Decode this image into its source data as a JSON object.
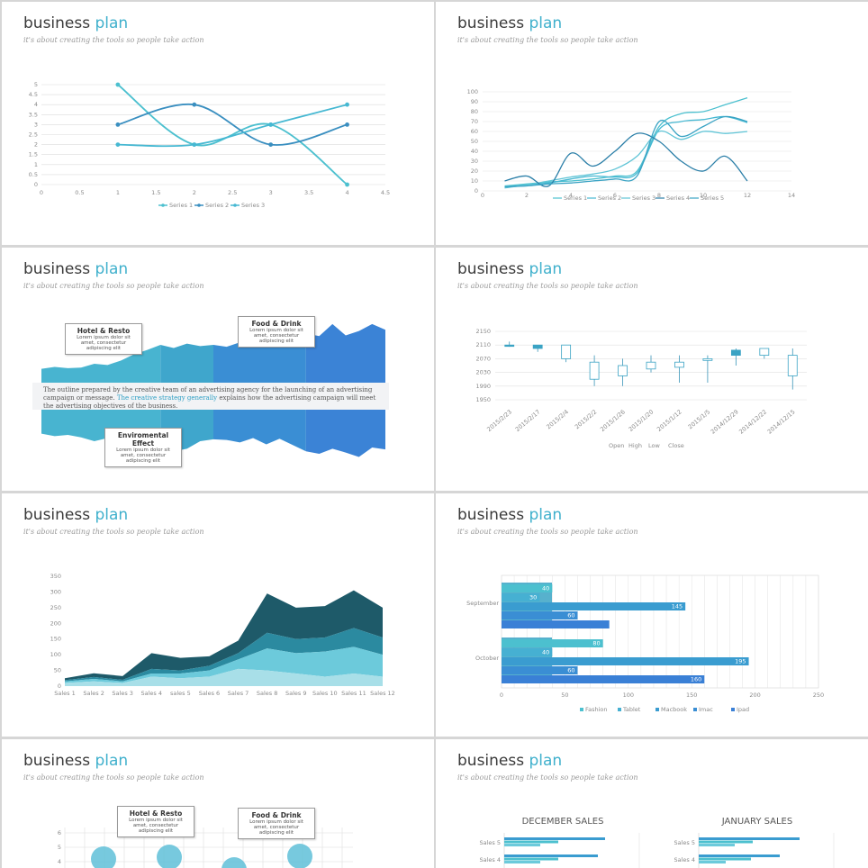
{
  "slide_header": {
    "title_a": "business",
    "title_b": "plan",
    "subtitle": "it's about creating the tools so people take action"
  },
  "colors": {
    "accent": "#3fb0cc",
    "teal1": "#46b8d2",
    "teal2": "#3a8fc0",
    "teal3": "#4cc0cf",
    "blue": "#3a86d4",
    "dark": "#1e5a69"
  },
  "callouts": {
    "hotel": {
      "title": "Hotel & Resto",
      "body": "Lorem ipsum dolor sit amet, consectetur adipiscing elit"
    },
    "food": {
      "title": "Food & Drink",
      "body": "Lorem ipsum dolor sit amet, consectetur adipiscing elit"
    },
    "env": {
      "title": "Enviromental Effect",
      "body": "Lorem ipsum dolor sit amet, consectetur adipiscing elit"
    }
  },
  "band_text": {
    "pre": "The outline prepared by the creative team of an advertising agency for the launching of an advertising campaign or message.",
    "highlight": "The creative strategy generally",
    "post": "explains how the advertising campaign will meet the advertising objectives of the business."
  },
  "chart_data": [
    {
      "type": "line",
      "x": [
        1,
        2,
        3,
        4
      ],
      "series": [
        {
          "name": "Series 1",
          "values": [
            5,
            2,
            3,
            0
          ]
        },
        {
          "name": "Series 2",
          "values": [
            3,
            4,
            2,
            3
          ]
        },
        {
          "name": "Series 3",
          "values": [
            2,
            2,
            3,
            4
          ]
        }
      ],
      "xlim": [
        0,
        4.5
      ],
      "ylim": [
        0,
        5
      ],
      "xticks": [
        "0",
        "0.5",
        "1",
        "1.5",
        "2",
        "2.5",
        "3",
        "3.5",
        "4",
        "4.5"
      ],
      "yticks": [
        "0",
        "0.5",
        "1",
        "1.5",
        "2",
        "2.5",
        "3",
        "3.5",
        "4",
        "4.5",
        "5"
      ],
      "legend": "bottom"
    },
    {
      "type": "line",
      "x": [
        1,
        2,
        3,
        4,
        5,
        6,
        7,
        8,
        9,
        10,
        11,
        12
      ],
      "series": [
        {
          "name": "Series 1",
          "values": [
            5,
            7,
            9,
            10,
            12,
            15,
            20,
            65,
            78,
            80,
            87,
            94
          ]
        },
        {
          "name": "Series 2",
          "values": [
            4,
            6,
            8,
            12,
            15,
            14,
            18,
            62,
            70,
            72,
            75,
            69
          ]
        },
        {
          "name": "Series 3",
          "values": [
            3,
            6,
            10,
            14,
            17,
            22,
            35,
            60,
            52,
            60,
            58,
            60
          ]
        },
        {
          "name": "Series 4",
          "values": [
            10,
            15,
            5,
            38,
            25,
            40,
            58,
            50,
            30,
            20,
            35,
            10
          ]
        },
        {
          "name": "Series 5",
          "values": [
            4,
            5,
            7,
            8,
            10,
            12,
            15,
            70,
            55,
            65,
            75,
            70
          ]
        }
      ],
      "xlim": [
        0,
        14
      ],
      "ylim": [
        0,
        100
      ],
      "xticks": [
        "0",
        "2",
        "4",
        "6",
        "8",
        "10",
        "12",
        "14"
      ],
      "yticks": [
        "0",
        "10",
        "20",
        "30",
        "40",
        "50",
        "60",
        "70",
        "80",
        "90",
        "100"
      ],
      "legend": "bottom"
    },
    {
      "type": "area",
      "series": [
        {
          "name": "upper",
          "values": [
            22,
            25,
            23,
            24,
            30,
            28,
            35,
            45,
            52,
            60,
            55,
            62,
            58,
            60,
            57,
            64,
            61,
            65,
            80,
            68,
            78,
            74,
            93,
            75,
            82,
            93,
            84
          ]
        },
        {
          "name": "lower",
          "values": [
            38,
            42,
            40,
            44,
            50,
            45,
            48,
            47,
            50,
            60,
            66,
            62,
            50,
            47,
            48,
            52,
            45,
            55,
            46,
            56,
            66,
            70,
            62,
            68,
            75,
            60,
            63
          ]
        }
      ],
      "legend": "none"
    },
    {
      "type": "candlestick",
      "categories": [
        "2015/2/23",
        "2015/2/17",
        "2015/2/4",
        "2015/2/2",
        "2015/1/26",
        "2015/1/20",
        "2015/1/12",
        "2015/1/5",
        "2014/12/29",
        "2014/12/22",
        "2014/12/15"
      ],
      "series": [
        {
          "name": "Open",
          "values": [
            2110,
            2100,
            2110,
            2060,
            2050,
            2060,
            2060,
            2070,
            2080,
            2100,
            2080
          ]
        },
        {
          "name": "High",
          "values": [
            2120,
            2110,
            2110,
            2080,
            2070,
            2080,
            2080,
            2080,
            2100,
            2100,
            2100
          ]
        },
        {
          "name": "Low",
          "values": [
            2105,
            2090,
            2060,
            1990,
            1990,
            2030,
            2000,
            2000,
            2050,
            2070,
            1980
          ]
        },
        {
          "name": "Close",
          "values": [
            2110,
            2110,
            2070,
            2010,
            2020,
            2040,
            2045,
            2065,
            2095,
            2080,
            2020
          ]
        }
      ],
      "ylim": [
        1950,
        2150
      ],
      "yticks": [
        "1950",
        "1990",
        "2030",
        "2070",
        "2110",
        "2150"
      ],
      "legend": "bottom"
    },
    {
      "type": "area",
      "categories": [
        "Sales 1",
        "Sales 2",
        "Sales 3",
        "Sales 4",
        "sales 5",
        "Sales 6",
        "Sales 7",
        "Sales 8",
        "Sales 9",
        "Sales 10",
        "Sales 11",
        "Sales 12"
      ],
      "series": [
        {
          "name": "A",
          "values": [
            10,
            15,
            10,
            30,
            25,
            30,
            55,
            50,
            40,
            30,
            40,
            30
          ]
        },
        {
          "name": "B",
          "values": [
            5,
            8,
            5,
            10,
            15,
            20,
            30,
            70,
            65,
            80,
            85,
            70
          ]
        },
        {
          "name": "C",
          "values": [
            4,
            6,
            5,
            15,
            10,
            15,
            20,
            50,
            45,
            45,
            60,
            55
          ]
        },
        {
          "name": "D",
          "values": [
            6,
            12,
            12,
            50,
            40,
            30,
            40,
            125,
            100,
            100,
            120,
            95
          ]
        }
      ],
      "ylim": [
        0,
        350
      ],
      "yticks": [
        "0",
        "50",
        "100",
        "150",
        "200",
        "250",
        "300",
        "350"
      ],
      "legend": "none"
    },
    {
      "type": "bar",
      "orientation": "horizontal",
      "categories": [
        "September",
        "October"
      ],
      "series": [
        {
          "name": "Fashion",
          "values": [
            40,
            80
          ]
        },
        {
          "name": "Tablet",
          "values": [
            30,
            40
          ]
        },
        {
          "name": "Macbook",
          "values": [
            145,
            195
          ]
        },
        {
          "name": "Imac",
          "values": [
            60,
            60
          ]
        },
        {
          "name": "Ipad",
          "values": [
            85,
            160
          ]
        }
      ],
      "data_labels": [
        [
          "40",
          "30",
          "145",
          "60",
          ""
        ],
        [
          "80",
          "40",
          "195",
          "60",
          "160"
        ]
      ],
      "xlim": [
        0,
        250
      ],
      "xticks": [
        "0",
        "50",
        "100",
        "150",
        "200",
        "250"
      ],
      "legend": "bottom"
    },
    {
      "type": "scatter",
      "yticks": [
        "4",
        "5",
        "6"
      ],
      "legend": "none"
    },
    {
      "type": "bar",
      "orientation": "horizontal",
      "panels": [
        {
          "title": "DECEMBER SALES",
          "categories": [
            "Sales 5",
            "Sales 4"
          ]
        },
        {
          "title": "JANUARY SALES",
          "categories": [
            "Sales 5",
            "Sales 4"
          ]
        }
      ],
      "legend": "none"
    }
  ]
}
